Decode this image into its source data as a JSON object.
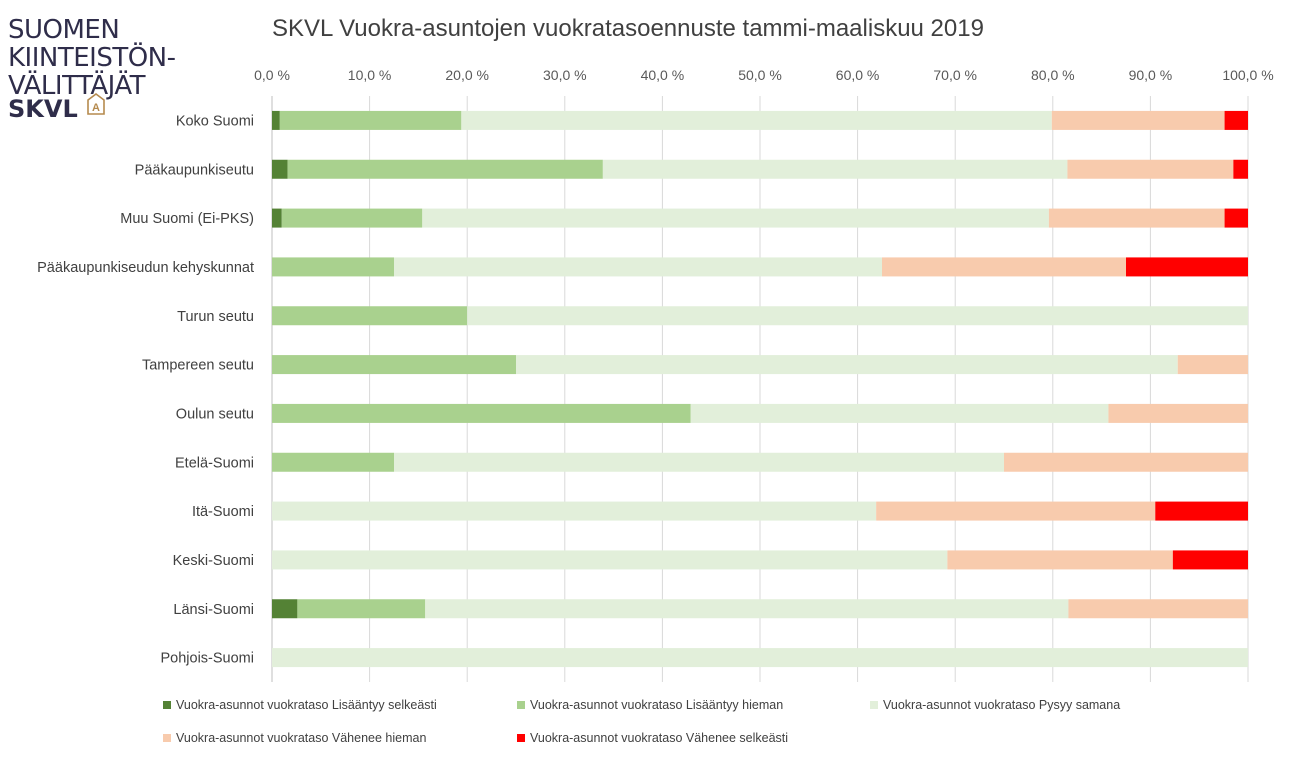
{
  "logo": {
    "line1": "SUOMEN",
    "line2": "KIINTEISTÖN-",
    "line3": "VÄLITTÄJÄT",
    "brand": "SKVL",
    "brand_glyph": "A",
    "text_color": "#2f2d4a",
    "accent_color": "#b58a4e"
  },
  "chart_data": {
    "type": "bar",
    "orientation": "horizontal",
    "stacked": true,
    "percent_stacked": true,
    "title": "SKVL Vuokra-asuntojen vuokratasoennuste tammi-maaliskuu 2019",
    "x_axis_position": "top",
    "xlim": [
      0,
      100
    ],
    "x_ticks": [
      "0,0 %",
      "10,0 %",
      "20,0 %",
      "30,0 %",
      "40,0 %",
      "50,0 %",
      "60,0 %",
      "70,0 %",
      "80,0 %",
      "90,0 %",
      "100,0 %"
    ],
    "gridlines": true,
    "legend_position": "bottom",
    "categories": [
      "Koko Suomi",
      "Pääkaupunkiseutu",
      "Muu Suomi (Ei-PKS)",
      "Pääkaupunkiseudun kehyskunnat",
      "Turun seutu",
      "Tampereen seutu",
      "Oulun seutu",
      "Etelä-Suomi",
      "Itä-Suomi",
      "Keski-Suomi",
      "Länsi-Suomi",
      "Pohjois-Suomi"
    ],
    "series": [
      {
        "name": "Vuokra-asunnot vuokrataso Lisääntyy selkeästi",
        "color": "#548235",
        "values": [
          0.8,
          1.6,
          1.0,
          0,
          0,
          0,
          0,
          0,
          0,
          0,
          2.6,
          0
        ]
      },
      {
        "name": "Vuokra-asunnot vuokrataso Lisääntyy hieman",
        "color": "#a9d18e",
        "values": [
          18.6,
          32.3,
          14.4,
          12.5,
          20.0,
          25.0,
          42.9,
          12.5,
          0,
          0,
          13.1,
          0
        ]
      },
      {
        "name": "Vuokra-asunnot vuokrataso Pysyy samana",
        "color": "#e2efda",
        "values": [
          60.5,
          47.6,
          64.2,
          50.0,
          80.0,
          67.8,
          42.8,
          62.5,
          61.9,
          69.2,
          65.9,
          100
        ]
      },
      {
        "name": "Vuokra-asunnot vuokrataso Vähenee hieman",
        "color": "#f8cbad",
        "values": [
          17.7,
          17.0,
          18.0,
          25.0,
          0,
          7.2,
          14.3,
          25.0,
          28.6,
          23.1,
          18.4,
          0
        ]
      },
      {
        "name": "Vuokra-asunnot vuokrataso Vähenee selkeästi",
        "color": "#ff0000",
        "values": [
          2.4,
          1.5,
          2.4,
          12.5,
          0,
          0,
          0,
          0,
          9.5,
          7.7,
          0,
          0
        ]
      }
    ]
  }
}
